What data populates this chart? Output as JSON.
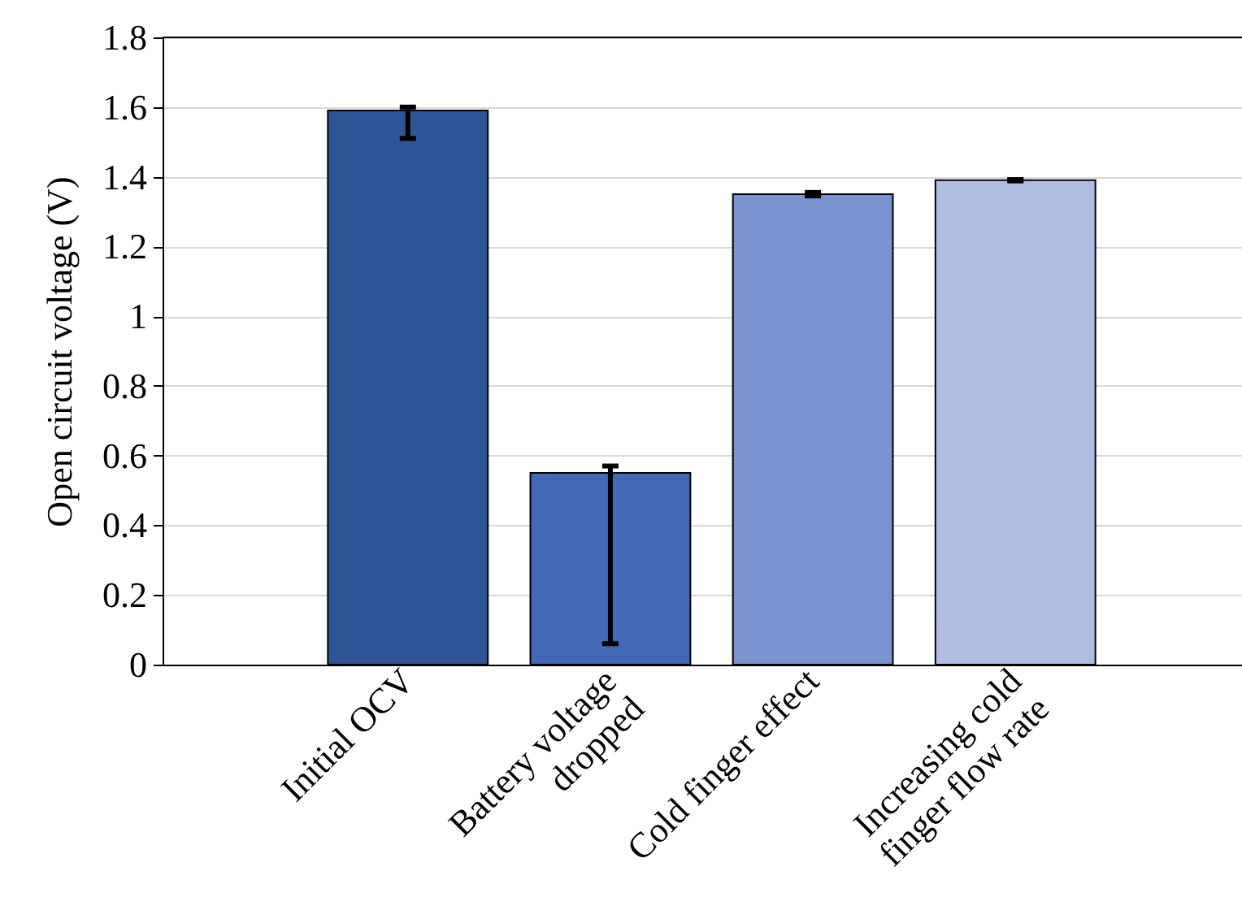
{
  "chart_data": {
    "type": "bar",
    "ylabel": "Open circuit voltage (V)",
    "categories": [
      "Initial OCV",
      "Battery voltage dropped",
      "Cold finger effect",
      "Increasing cold finger flow rate"
    ],
    "values": [
      1.59,
      0.55,
      1.35,
      1.39
    ],
    "colors": [
      "#2f5597",
      "#4169b8",
      "#7a93cf",
      "#b1bde0"
    ],
    "errors": [
      [
        1.51,
        1.6
      ],
      [
        0.06,
        0.57
      ],
      0.005,
      0.002
    ],
    "ylim": [
      0,
      1.8
    ],
    "yticks": [
      0,
      0.2,
      0.4,
      0.6,
      0.8,
      1,
      1.2,
      1.4,
      1.6,
      1.8
    ],
    "grid": "y"
  }
}
